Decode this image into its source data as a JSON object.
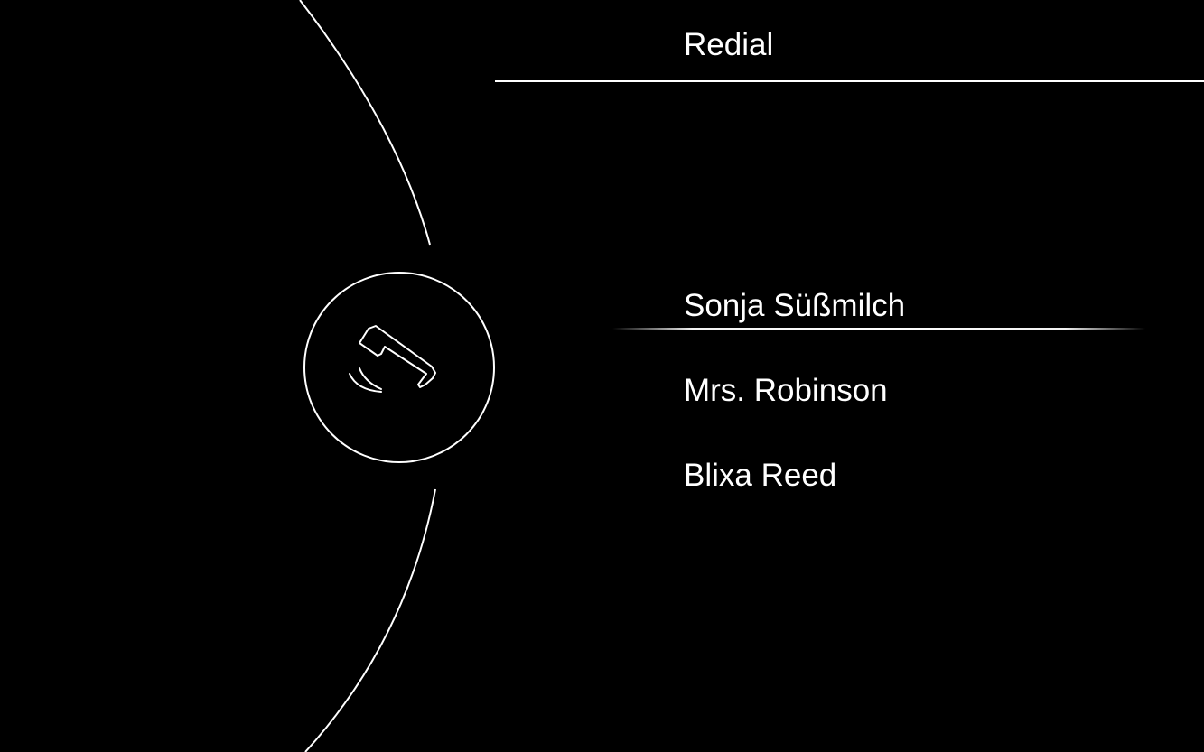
{
  "header": {
    "title": "Redial"
  },
  "call_button": {
    "icon": "phone-redial-icon"
  },
  "contacts": [
    {
      "name": "Sonja Süßmilch",
      "selected": true
    },
    {
      "name": "Mrs. Robinson",
      "selected": false
    },
    {
      "name": "Blixa Reed",
      "selected": false
    }
  ],
  "colors": {
    "background": "#000000",
    "foreground": "#ffffff"
  }
}
